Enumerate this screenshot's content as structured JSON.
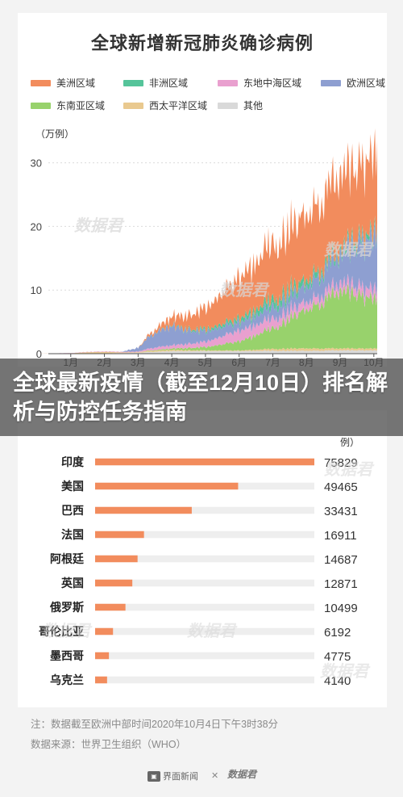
{
  "banner": {
    "text": "全球最新疫情（截至12月10日）排名解析与防控任务指南"
  },
  "chart_data": [
    {
      "type": "area",
      "title": "全球新增新冠肺炎确诊病例",
      "ylabel": "（万例）",
      "ylim": [
        0,
        33
      ],
      "yticks": [
        0,
        10,
        20,
        30
      ],
      "x_ticks": [
        "1月",
        "2月",
        "3月",
        "4月",
        "5月",
        "6月",
        "7月",
        "8月",
        "9月",
        "10月"
      ],
      "x_range_months": [
        0,
        10.1
      ],
      "series": [
        {
          "name": "其他",
          "color": "#d9d9d9",
          "x": [
            0,
            1,
            2,
            3,
            3.5,
            4,
            5,
            6,
            7,
            8,
            9,
            10.1
          ],
          "values": [
            0,
            0.02,
            0.05,
            0.15,
            0.3,
            0.4,
            0.4,
            0.4,
            0.45,
            0.45,
            0.5,
            0.5
          ]
        },
        {
          "name": "西太平洋区域",
          "color": "#e9c98f",
          "x": [
            0,
            1,
            1.5,
            2,
            2.5,
            3,
            3.5,
            4,
            5,
            6,
            7,
            8,
            9,
            10.1
          ],
          "values": [
            0,
            0.05,
            0.2,
            0.25,
            0.1,
            0.1,
            0.2,
            0.2,
            0.1,
            0.1,
            0.3,
            0.4,
            0.3,
            0.3
          ]
        },
        {
          "name": "东南亚区域",
          "color": "#98d26c",
          "x": [
            0,
            3,
            3.5,
            4,
            5,
            6,
            7,
            8,
            9,
            10.1
          ],
          "values": [
            0,
            0,
            0.1,
            0.2,
            0.5,
            1.4,
            3.2,
            6.2,
            8.8,
            7.6
          ]
        },
        {
          "name": "东地中海区域",
          "color": "#e9a0cf",
          "x": [
            0,
            3,
            3.5,
            4,
            5,
            6,
            7,
            8,
            9,
            10.1
          ],
          "values": [
            0,
            0.1,
            0.4,
            0.5,
            0.8,
            1.7,
            1.5,
            1.2,
            1.2,
            1.4
          ]
        },
        {
          "name": "欧洲区域",
          "color": "#8e9fd1",
          "x": [
            0,
            2.5,
            3,
            3.5,
            4,
            4.5,
            5,
            6,
            7,
            8,
            9,
            9.5,
            10.1
          ],
          "values": [
            0,
            0,
            0.6,
            2.4,
            3.0,
            2.1,
            1.6,
            1.3,
            1.8,
            2.5,
            4.4,
            6.5,
            8.5
          ]
        },
        {
          "name": "非洲区域",
          "color": "#55c49a",
          "x": [
            0,
            3,
            4,
            5,
            6,
            7,
            8,
            9,
            10.1
          ],
          "values": [
            0,
            0,
            0.1,
            0.3,
            0.6,
            1.2,
            1.0,
            0.7,
            0.7
          ]
        },
        {
          "name": "美洲区域",
          "color": "#f28c5d",
          "x": [
            0,
            3,
            3.5,
            4,
            4.5,
            5,
            6,
            7,
            8,
            9,
            9.5,
            10.1
          ],
          "values": [
            0,
            0,
            0.5,
            1.4,
            2.2,
            3.2,
            6.4,
            8.6,
            10.5,
            11.5,
            11.0,
            12.0
          ]
        }
      ]
    },
    {
      "type": "bar",
      "ylabel_fragment": "例）",
      "categories": [
        "印度",
        "美国",
        "巴西",
        "法国",
        "阿根廷",
        "英国",
        "俄罗斯",
        "哥伦比亚",
        "墨西哥",
        "乌克兰"
      ],
      "values": [
        75829,
        49465,
        33431,
        16911,
        14687,
        12871,
        10499,
        6192,
        4775,
        4140
      ],
      "xlim": [
        0,
        75829
      ],
      "bar_color": "#f28c5d",
      "track_color": "#eeeeee"
    }
  ],
  "notes": {
    "line1": "注：数据截至欧洲中部时间2020年10月4日下午3时38分",
    "line2": "数据来源：世界卫生组织（WHO）"
  },
  "footer": {
    "brand": "界面新闻",
    "watermark": "数据君"
  },
  "watermark_text": "数据君"
}
